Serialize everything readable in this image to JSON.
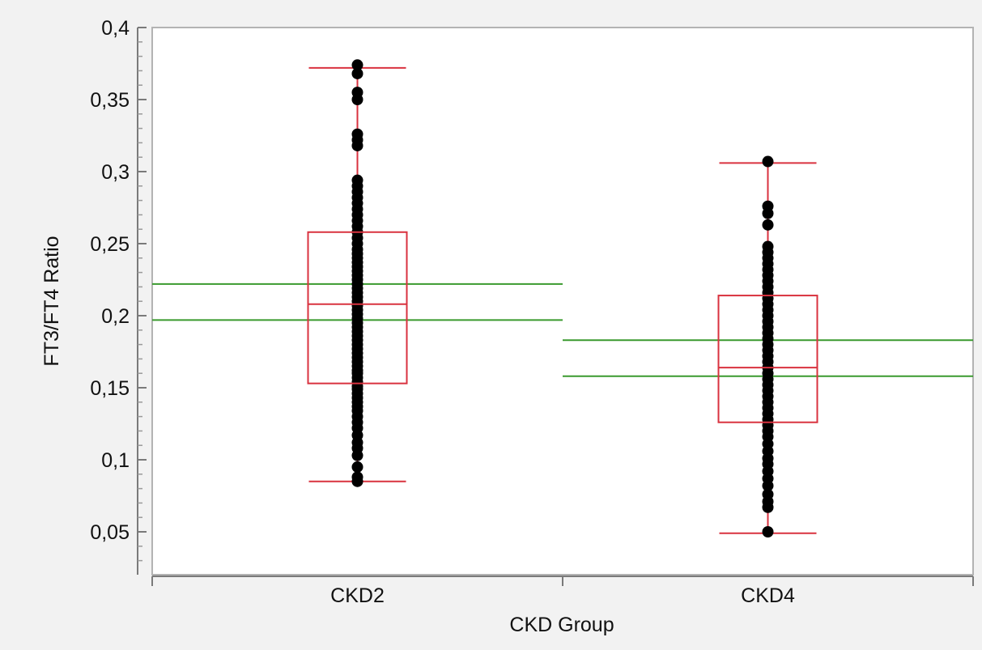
{
  "chart_data": {
    "type": "box",
    "title": "",
    "xlabel": "CKD Group",
    "ylabel": "FT3/FT4 Ratio",
    "ylim": [
      0.03,
      0.4
    ],
    "yticks": [
      {
        "value": 0.05,
        "label": "0,05"
      },
      {
        "value": 0.1,
        "label": "0,1"
      },
      {
        "value": 0.15,
        "label": "0,15"
      },
      {
        "value": 0.2,
        "label": "0,2"
      },
      {
        "value": 0.25,
        "label": "0,25"
      },
      {
        "value": 0.3,
        "label": "0,3"
      },
      {
        "value": 0.35,
        "label": "0,35"
      },
      {
        "value": 0.4,
        "label": "0,4"
      }
    ],
    "categories": [
      "CKD2",
      "CKD4"
    ],
    "grid": false,
    "colors": {
      "box": "#d9323f",
      "mean_ci": "#3a9a2e",
      "points": "#000000",
      "frame": "#b3b3b3",
      "background": "#ffffff"
    },
    "groups": [
      {
        "name": "CKD2",
        "whisker_low": 0.085,
        "q1": 0.153,
        "median": 0.208,
        "q3": 0.258,
        "whisker_high": 0.372,
        "mean_ci_upper": 0.222,
        "mean_ci_lower": 0.197,
        "points": [
          0.085,
          0.088,
          0.095,
          0.103,
          0.108,
          0.112,
          0.117,
          0.122,
          0.126,
          0.13,
          0.134,
          0.137,
          0.14,
          0.143,
          0.146,
          0.149,
          0.151,
          0.154,
          0.157,
          0.16,
          0.162,
          0.165,
          0.168,
          0.171,
          0.174,
          0.177,
          0.18,
          0.183,
          0.186,
          0.189,
          0.192,
          0.195,
          0.198,
          0.201,
          0.204,
          0.207,
          0.21,
          0.213,
          0.216,
          0.219,
          0.222,
          0.225,
          0.228,
          0.231,
          0.234,
          0.237,
          0.24,
          0.243,
          0.246,
          0.25,
          0.254,
          0.258,
          0.262,
          0.266,
          0.27,
          0.274,
          0.278,
          0.282,
          0.286,
          0.29,
          0.294,
          0.318,
          0.322,
          0.326,
          0.35,
          0.355,
          0.368,
          0.374
        ]
      },
      {
        "name": "CKD4",
        "whisker_low": 0.049,
        "q1": 0.126,
        "median": 0.164,
        "q3": 0.214,
        "whisker_high": 0.306,
        "mean_ci_upper": 0.183,
        "mean_ci_lower": 0.158,
        "points": [
          0.05,
          0.067,
          0.071,
          0.076,
          0.082,
          0.087,
          0.092,
          0.097,
          0.101,
          0.106,
          0.111,
          0.116,
          0.12,
          0.124,
          0.128,
          0.132,
          0.136,
          0.14,
          0.144,
          0.148,
          0.152,
          0.156,
          0.16,
          0.164,
          0.168,
          0.172,
          0.176,
          0.18,
          0.184,
          0.188,
          0.192,
          0.196,
          0.2,
          0.204,
          0.208,
          0.212,
          0.216,
          0.22,
          0.224,
          0.228,
          0.232,
          0.236,
          0.24,
          0.244,
          0.248,
          0.263,
          0.271,
          0.276,
          0.307
        ]
      }
    ]
  }
}
